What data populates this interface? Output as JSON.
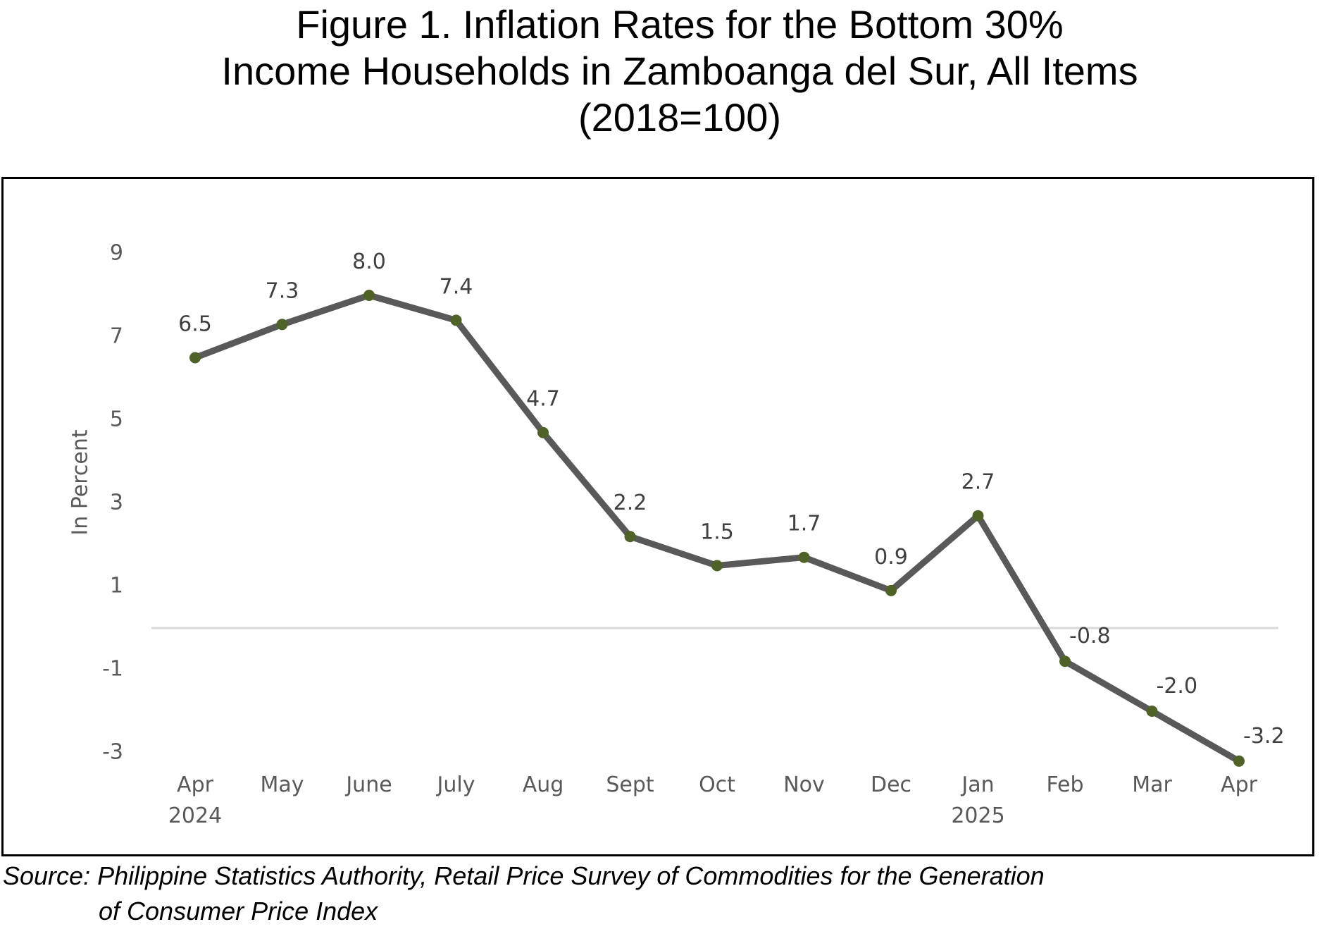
{
  "title": {
    "line1": "Figure 1. Inflation Rates for the Bottom 30%",
    "line2": "Income Households in Zamboanga del Sur, All Items",
    "line3": "(2018=100)"
  },
  "source": {
    "line1": "Source: Philippine Statistics Authority, Retail Price Survey of Commodities for the Generation",
    "line2": "of Consumer Price Index"
  },
  "chart_data": {
    "type": "line",
    "title": "Figure 1. Inflation Rates for the Bottom 30% Income Households in Zamboanga del Sur, All Items (2018=100)",
    "xlabel": "",
    "ylabel": "In Percent",
    "categories": [
      "Apr",
      "May",
      "June",
      "July",
      "Aug",
      "Sept",
      "Oct",
      "Nov",
      "Dec",
      "Jan",
      "Feb",
      "Mar",
      "Apr"
    ],
    "category_years": [
      "2024",
      "",
      "",
      "",
      "",
      "",
      "",
      "",
      "",
      "2025",
      "",
      "",
      ""
    ],
    "data_labels": [
      "6.5",
      "7.3",
      "8.0",
      "7.4",
      "4.7",
      "2.2",
      "1.5",
      "1.7",
      "0.9",
      "2.7",
      "-0.8",
      "-2.0",
      "-3.2"
    ],
    "series": [
      {
        "values": [
          6.5,
          7.3,
          8.0,
          7.4,
          4.7,
          2.2,
          1.5,
          1.7,
          0.9,
          2.7,
          -0.8,
          -2.0,
          -3.2
        ]
      }
    ],
    "yticks": [
      9,
      7,
      5,
      3,
      1,
      -1,
      -3
    ],
    "ylim": [
      -3.2,
      9
    ],
    "grid": false,
    "zero_line": true,
    "legend": "none",
    "colors": {
      "line": "#595959",
      "marker": "#4f6228",
      "zero_line": "#d9d9d9",
      "tick_text": "#595959",
      "label_text": "#404040"
    }
  }
}
